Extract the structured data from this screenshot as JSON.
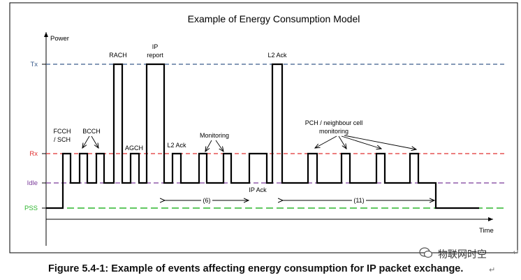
{
  "title": "Example of Energy Consumption Model",
  "axes": {
    "y_label": "Power",
    "x_label": "Time"
  },
  "levels": [
    {
      "id": "tx",
      "label": "Tx",
      "color": "#3b5c8c"
    },
    {
      "id": "rx",
      "label": "Rx",
      "color": "#e03030"
    },
    {
      "id": "idle",
      "label": "Idle",
      "color": "#7a3a9a"
    },
    {
      "id": "pss",
      "label": "PSS",
      "color": "#2db52d"
    }
  ],
  "event_labels": {
    "fcch": [
      "FCCH",
      "/ SCH"
    ],
    "bcch": "BCCH",
    "rach": "RACH",
    "agch": "AGCH",
    "ip_report": [
      "IP",
      "report"
    ],
    "l2ack_rx": "L2 Ack",
    "monitoring": "Monitoring",
    "ip_ack": "IP Ack",
    "l2ack_tx": "L2 Ack",
    "pch": [
      "PCH / neighbour cell",
      "monitoring"
    ]
  },
  "intervals": [
    {
      "label": "(6)"
    },
    {
      "label": "(11)"
    }
  ],
  "caption": "Figure 5.4-1: Example of events affecting energy consumption for IP packet exchange.",
  "watermark": "物联网时空",
  "paragraph_mark": "↵"
}
